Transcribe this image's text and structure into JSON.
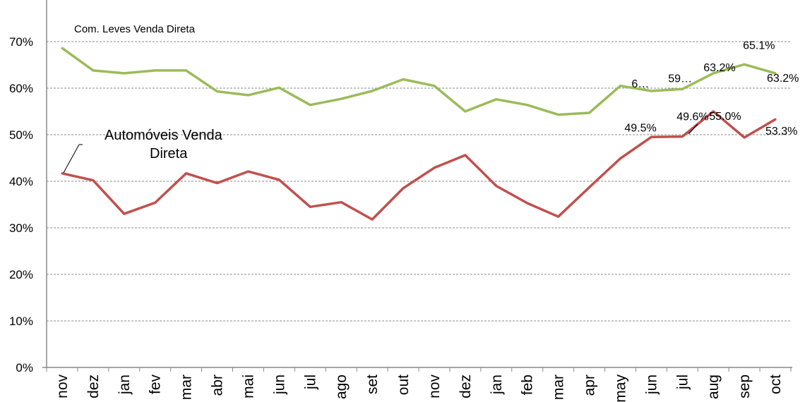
{
  "chart_data": {
    "type": "line",
    "title": "",
    "xlabel": "",
    "ylabel": "",
    "ylim": [
      0,
      70
    ],
    "yticks": [
      "0%",
      "10%",
      "20%",
      "30%",
      "40%",
      "50%",
      "60%",
      "70%"
    ],
    "grid": true,
    "categories": [
      "nov",
      "dez",
      "jan",
      "fev",
      "mar",
      "abr",
      "mai",
      "jun",
      "jul",
      "ago",
      "set",
      "out",
      "nov",
      "dez",
      "jan",
      "feb",
      "mar",
      "apr",
      "may",
      "jun",
      "jul",
      "aug",
      "sep",
      "oct"
    ],
    "series": [
      {
        "name": "Com. Leves Venda Direta",
        "color": "#9bbb59",
        "values": [
          68.6,
          63.8,
          63.2,
          63.8,
          63.8,
          59.3,
          58.5,
          60.1,
          56.4,
          57.7,
          59.4,
          61.9,
          60.5,
          55.0,
          57.6,
          56.4,
          54.3,
          54.7,
          60.5,
          59.4,
          59.8,
          63.2,
          65.1,
          63.2
        ],
        "labels": [
          {
            "index": 19,
            "text": "6…"
          },
          {
            "index": 20,
            "text": "59…"
          },
          {
            "index": 21,
            "text": "63.2%"
          },
          {
            "index": 22,
            "text": "65.1%"
          },
          {
            "index": 23,
            "text": "63.2%"
          }
        ]
      },
      {
        "name": "Automóveis Venda Direta",
        "color": "#c0504d",
        "values": [
          41.7,
          40.2,
          33.0,
          35.4,
          41.7,
          39.6,
          42.1,
          40.3,
          34.5,
          35.5,
          31.8,
          38.5,
          42.9,
          45.6,
          39.0,
          35.3,
          32.4,
          38.7,
          44.9,
          49.5,
          49.6,
          55.0,
          49.4,
          53.3
        ],
        "labels": [
          {
            "index": 19,
            "text": "49.5%"
          },
          {
            "index": 20,
            "text": "49.6%"
          },
          {
            "index": 21,
            "text": "55.0%"
          },
          {
            "index": 23,
            "text": "53.3%"
          }
        ]
      }
    ],
    "annotations": {
      "green_label_line1": "Com. Leves Venda Direta",
      "red_label_line1": "Automóveis Venda",
      "red_label_line2": "Direta"
    }
  }
}
